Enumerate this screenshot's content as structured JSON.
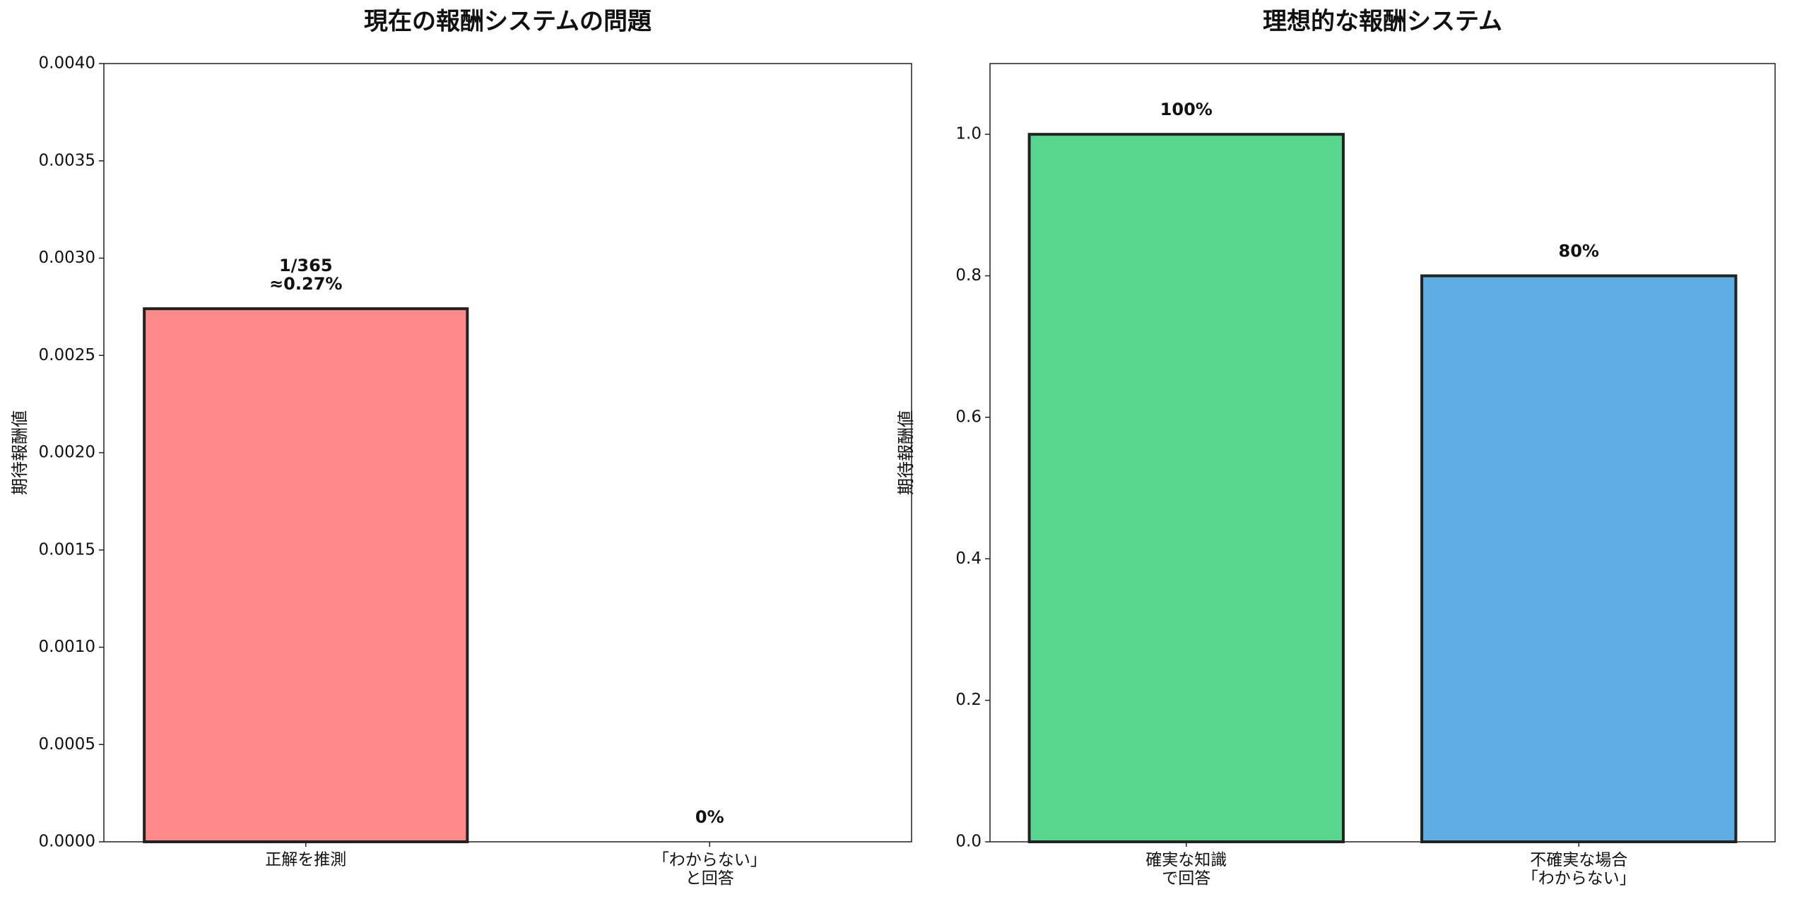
{
  "chart_data": [
    {
      "type": "bar",
      "title": "現在の報酬システムの問題",
      "y_label": "期待報酬値",
      "categories": [
        "正解を推測",
        "「わからない」\nと回答"
      ],
      "values": [
        0.00274,
        0
      ],
      "value_labels": [
        "1/365\n≈0.27%",
        "0%"
      ],
      "colors": [
        "#ff8a8a",
        "#5dade2"
      ],
      "ylim": [
        0,
        0.004
      ],
      "yticks": [
        {
          "value": 0,
          "label": "0.0000"
        },
        {
          "value": 0.0005,
          "label": "0.0005"
        },
        {
          "value": 0.001,
          "label": "0.0010"
        },
        {
          "value": 0.0015,
          "label": "0.0015"
        },
        {
          "value": 0.002,
          "label": "0.0020"
        },
        {
          "value": 0.0025,
          "label": "0.0025"
        },
        {
          "value": 0.003,
          "label": "0.0030"
        },
        {
          "value": 0.0035,
          "label": "0.0035"
        },
        {
          "value": 0.004,
          "label": "0.0040"
        }
      ]
    },
    {
      "type": "bar",
      "title": "理想的な報酬システム",
      "y_label": "期待報酬値",
      "categories": [
        "確実な知識\nで回答",
        "不確実な場合\n「わからない」"
      ],
      "values": [
        1.0,
        0.8
      ],
      "value_labels": [
        "100%",
        "80%"
      ],
      "colors": [
        "#58d68d",
        "#5dade2"
      ],
      "ylim": [
        0,
        1.1
      ],
      "yticks": [
        {
          "value": 0,
          "label": "0.0"
        },
        {
          "value": 0.2,
          "label": "0.2"
        },
        {
          "value": 0.4,
          "label": "0.4"
        },
        {
          "value": 0.6,
          "label": "0.6"
        },
        {
          "value": 0.8,
          "label": "0.8"
        },
        {
          "value": 1.0,
          "label": "1.0"
        }
      ]
    }
  ]
}
